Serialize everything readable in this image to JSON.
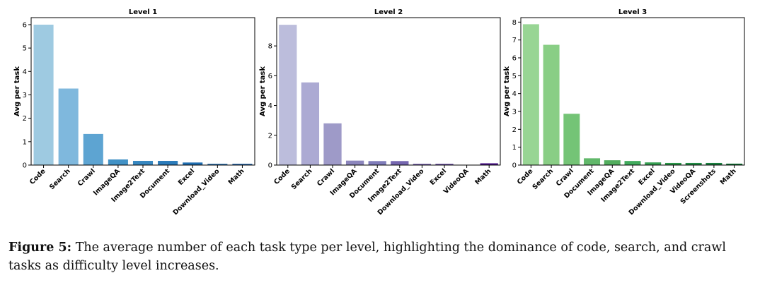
{
  "chart_data": [
    {
      "type": "bar",
      "title": "Level 1",
      "ylabel": "Avg per task",
      "ylim": [
        0,
        6.3
      ],
      "yticks": [
        0,
        1,
        2,
        3,
        4,
        5,
        6
      ],
      "categories": [
        "Code",
        "Search",
        "Crawl",
        "ImageQA",
        "Image2Text",
        "Document",
        "Excel",
        "Download_Video",
        "Math"
      ],
      "values": [
        6.0,
        3.27,
        1.33,
        0.24,
        0.18,
        0.18,
        0.11,
        0.05,
        0.05
      ],
      "colors": [
        "#9ecae1",
        "#7fb8dd",
        "#5da4d2",
        "#4292c6",
        "#3787c0",
        "#2b7bba",
        "#1f6eb0",
        "#1561a6",
        "#0b559f"
      ]
    },
    {
      "type": "bar",
      "title": "Level 2",
      "ylabel": "Avg per task",
      "ylim": [
        0,
        9.9
      ],
      "yticks": [
        0,
        2,
        4,
        6,
        8
      ],
      "categories": [
        "Code",
        "Search",
        "Crawl",
        "ImageQA",
        "Document",
        "Image2Text",
        "Download_Video",
        "Excel",
        "VideoQA",
        "Math"
      ],
      "values": [
        9.42,
        5.55,
        2.8,
        0.3,
        0.27,
        0.27,
        0.08,
        0.08,
        0.02,
        0.12
      ],
      "colors": [
        "#bcbddc",
        "#acaad3",
        "#9e9ac8",
        "#8c86bd",
        "#807dba",
        "#7566af",
        "#6a51a3",
        "#5e3f99",
        "#54278f",
        "#4a1486"
      ]
    },
    {
      "type": "bar",
      "title": "Level 3",
      "ylabel": "Avg per task",
      "ylim": [
        0,
        8.25
      ],
      "yticks": [
        0,
        1,
        2,
        3,
        4,
        5,
        6,
        7,
        8
      ],
      "categories": [
        "Code",
        "Search",
        "Crawl",
        "Document",
        "ImageQA",
        "Image2Text",
        "Excel",
        "Download_Video",
        "VideoQA",
        "Screenshots",
        "Math"
      ],
      "values": [
        7.88,
        6.73,
        2.87,
        0.38,
        0.27,
        0.23,
        0.15,
        0.12,
        0.12,
        0.12,
        0.08
      ],
      "colors": [
        "#98d594",
        "#89ce85",
        "#74c476",
        "#61b86a",
        "#52ae5e",
        "#41ab5d",
        "#36a052",
        "#2b9548",
        "#238b45",
        "#1b7f3f",
        "#117334"
      ]
    }
  ],
  "caption": {
    "label": "Figure 5:",
    "text": " The average number of each task type per level, highlighting the dominance of code, search, and crawl tasks as difficulty level increases."
  }
}
